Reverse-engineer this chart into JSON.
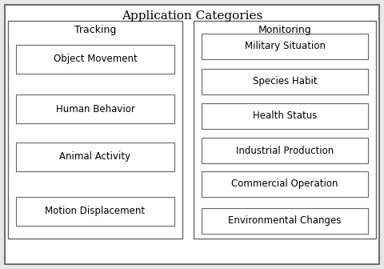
{
  "title": "Application Categories",
  "title_fontsize": 11,
  "left_section_label": "Tracking",
  "right_section_label": "Monitoring",
  "left_items": [
    "Object Movement",
    "Human Behavior",
    "Animal Activity",
    "Motion Displacement"
  ],
  "right_items": [
    "Military Situation",
    "Species Habit",
    "Health Status",
    "Industrial Production",
    "Commercial Operation",
    "Environmental Changes"
  ],
  "bg_color": "#d8d8d8",
  "box_facecolor": "#ffffff",
  "box_edgecolor": "#666666",
  "section_edgecolor": "#666666",
  "outer_edgecolor": "#555555",
  "outer_facecolor": "#e8e8e8",
  "label_fontsize": 9,
  "item_fontsize": 8.5
}
